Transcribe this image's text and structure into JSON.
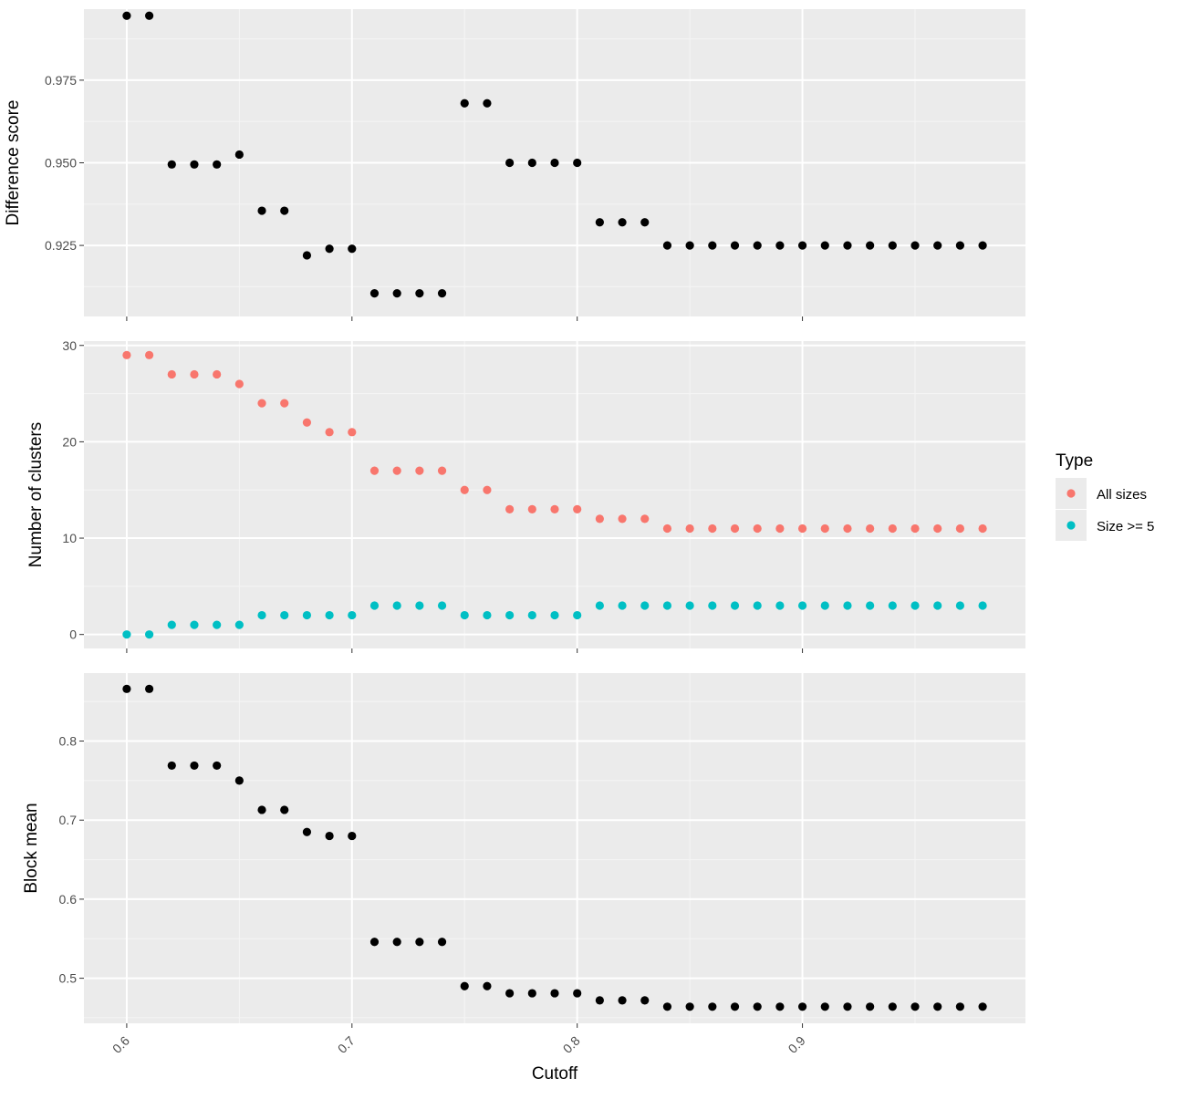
{
  "colors": {
    "panel_background": "#EBEBEB",
    "grid_major": "#FFFFFF",
    "grid_minor": "#F5F5F5",
    "point_default": "#000000",
    "all_sizes": "#F8766D",
    "size_ge_5": "#00BFC4",
    "tick_label": "#4D4D4D",
    "tick_mark": "#333333"
  },
  "chart_data": {
    "type": "scatter",
    "xlabel": "Cutoff",
    "x": [
      0.6,
      0.61,
      0.62,
      0.63,
      0.64,
      0.65,
      0.66,
      0.67,
      0.68,
      0.69,
      0.7,
      0.71,
      0.72,
      0.73,
      0.74,
      0.75,
      0.76,
      0.77,
      0.78,
      0.79,
      0.8,
      0.81,
      0.82,
      0.83,
      0.84,
      0.85,
      0.86,
      0.87,
      0.88,
      0.89,
      0.9,
      0.91,
      0.92,
      0.93,
      0.94,
      0.95,
      0.96,
      0.97,
      0.98
    ],
    "xlim": [
      0.581,
      0.999
    ],
    "xticks": [
      0.6,
      0.7,
      0.8,
      0.9
    ],
    "xtick_labels": [
      "0.6",
      "0.7",
      "0.8",
      "0.9"
    ],
    "grid": true,
    "legend": {
      "title": "Type",
      "position": "right",
      "entries": [
        {
          "label": "All sizes",
          "color": "#F8766D"
        },
        {
          "label": "Size >= 5",
          "color": "#00BFC4"
        }
      ]
    },
    "panels": [
      {
        "ylabel": "Difference score",
        "ylim": [
          0.9035,
          0.9965
        ],
        "yticks": [
          0.925,
          0.95,
          0.975
        ],
        "ytick_labels": [
          "0.925",
          "0.950",
          "0.975"
        ],
        "series": [
          {
            "values": [
              0.9945,
              0.9945,
              0.9495,
              0.9495,
              0.9495,
              0.9525,
              0.9355,
              0.9355,
              0.922,
              0.924,
              0.924,
              0.9105,
              0.9105,
              0.9105,
              0.9105,
              0.968,
              0.968,
              0.95,
              0.95,
              0.95,
              0.95,
              0.932,
              0.932,
              0.932,
              0.925,
              0.925,
              0.925,
              0.925,
              0.925,
              0.925,
              0.925,
              0.925,
              0.925,
              0.925,
              0.925,
              0.925,
              0.925,
              0.925,
              0.925
            ]
          }
        ]
      },
      {
        "ylabel": "Number of clusters",
        "ylim": [
          -1.45,
          30.45
        ],
        "yticks": [
          0,
          10,
          20,
          30
        ],
        "ytick_labels": [
          "0",
          "10",
          "20",
          "30"
        ],
        "series": [
          {
            "name": "All sizes",
            "values": [
              29,
              29,
              27,
              27,
              27,
              26,
              24,
              24,
              22,
              21,
              21,
              17,
              17,
              17,
              17,
              15,
              15,
              13,
              13,
              13,
              13,
              12,
              12,
              12,
              11,
              11,
              11,
              11,
              11,
              11,
              11,
              11,
              11,
              11,
              11,
              11,
              11,
              11,
              11
            ]
          },
          {
            "name": "Size >= 5",
            "values": [
              0,
              0,
              1,
              1,
              1,
              1,
              2,
              2,
              2,
              2,
              2,
              3,
              3,
              3,
              3,
              2,
              2,
              2,
              2,
              2,
              2,
              3,
              3,
              3,
              3,
              3,
              3,
              3,
              3,
              3,
              3,
              3,
              3,
              3,
              3,
              3,
              3,
              3,
              3
            ]
          }
        ]
      },
      {
        "ylabel": "Block mean",
        "ylim": [
          0.443,
          0.886
        ],
        "yticks": [
          0.5,
          0.6,
          0.7,
          0.8
        ],
        "ytick_labels": [
          "0.5",
          "0.6",
          "0.7",
          "0.8"
        ],
        "series": [
          {
            "values": [
              0.866,
              0.866,
              0.769,
              0.769,
              0.769,
              0.75,
              0.713,
              0.713,
              0.685,
              0.68,
              0.68,
              0.546,
              0.546,
              0.546,
              0.546,
              0.49,
              0.49,
              0.481,
              0.481,
              0.481,
              0.481,
              0.472,
              0.472,
              0.472,
              0.464,
              0.464,
              0.464,
              0.464,
              0.464,
              0.464,
              0.464,
              0.464,
              0.464,
              0.464,
              0.464,
              0.464,
              0.464,
              0.464,
              0.464
            ]
          }
        ]
      }
    ]
  }
}
